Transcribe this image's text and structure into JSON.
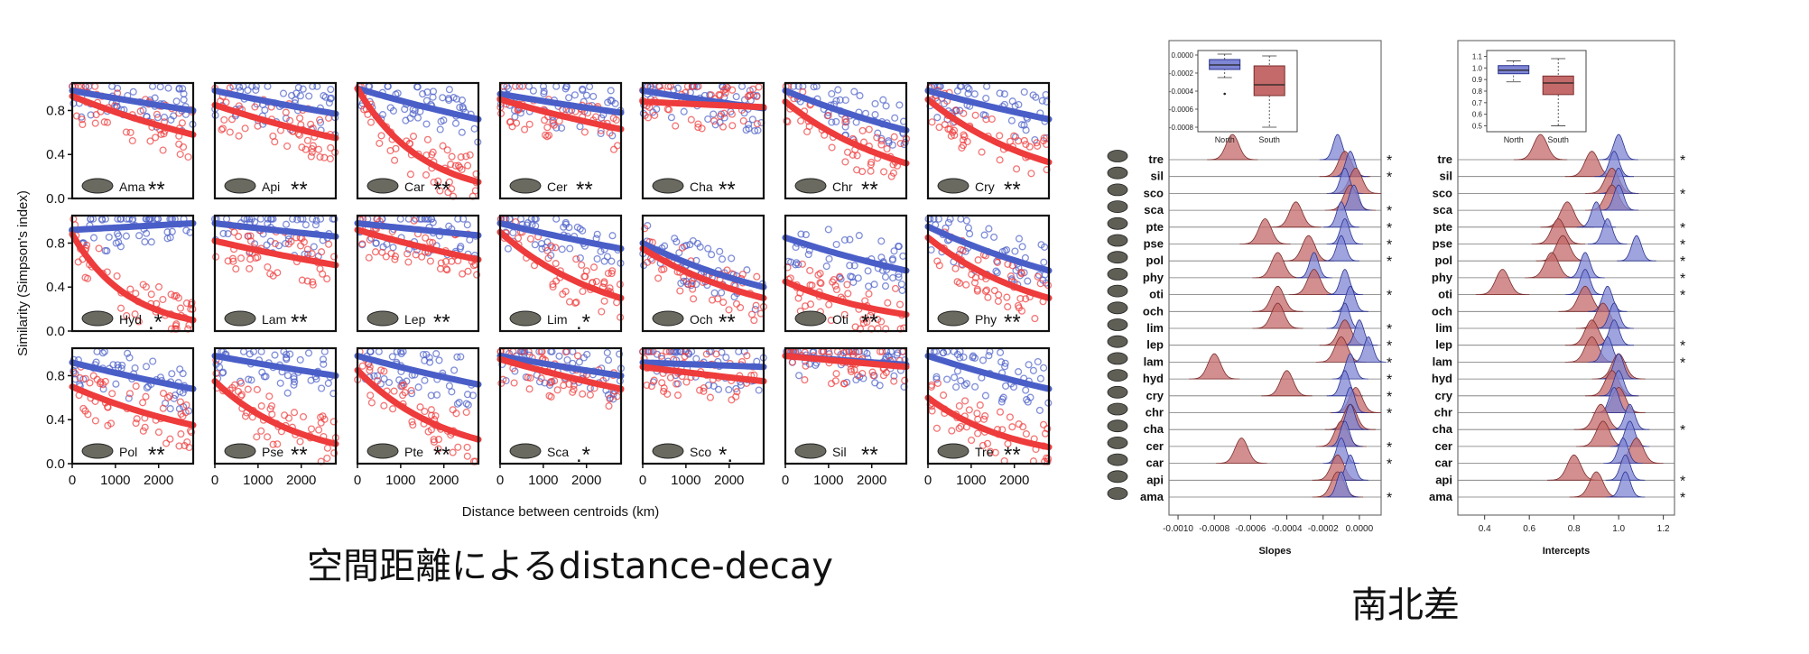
{
  "captions": {
    "left": "空間距離によるdistance-decay",
    "right": "南北差"
  },
  "colors": {
    "north": "#4a5ec8",
    "south": "#ee3b3b",
    "north_fill": "#7f86d4",
    "south_fill": "#c46a6a",
    "frame": "#111111"
  },
  "chart_data": [
    {
      "type": "scatter",
      "ylabel": "Similarity (Simpson's index)",
      "xlabel": "Distance between centroids (km)",
      "x_ticks": [
        "0",
        "1000",
        "2000"
      ],
      "y_ticks": [
        "0.0",
        "0.4",
        "0.8"
      ],
      "xlim": [
        0,
        2800
      ],
      "ylim": [
        0,
        1.05
      ],
      "panels": [
        {
          "label": "Ama",
          "sig": "**",
          "north": [
            0.98,
            0.8
          ],
          "south": [
            0.93,
            0.58
          ]
        },
        {
          "label": "Api",
          "sig": "**",
          "north": [
            0.98,
            0.77
          ],
          "south": [
            0.85,
            0.55
          ]
        },
        {
          "label": "Car",
          "sig": "**",
          "north": [
            1.0,
            0.72
          ],
          "south": [
            1.0,
            0.15
          ]
        },
        {
          "label": "Cer",
          "sig": "**",
          "north": [
            0.95,
            0.78
          ],
          "south": [
            0.9,
            0.63
          ]
        },
        {
          "label": "Cha",
          "sig": "**",
          "north": [
            0.98,
            0.82
          ],
          "south": [
            0.88,
            0.83
          ]
        },
        {
          "label": "Chr",
          "sig": "**",
          "north": [
            0.98,
            0.62
          ],
          "south": [
            0.88,
            0.32
          ]
        },
        {
          "label": "Cry",
          "sig": "**",
          "north": [
            0.98,
            0.72
          ],
          "south": [
            0.9,
            0.33
          ]
        },
        {
          "label": "Hyd",
          "sig": ".*",
          "north": [
            0.92,
            0.98
          ],
          "south": [
            0.88,
            0.1
          ]
        },
        {
          "label": "Lam",
          "sig": "**",
          "north": [
            0.98,
            0.86
          ],
          "south": [
            0.82,
            0.6
          ]
        },
        {
          "label": "Lep",
          "sig": "**",
          "north": [
            0.98,
            0.87
          ],
          "south": [
            0.92,
            0.65
          ]
        },
        {
          "label": "Lim",
          "sig": ".*",
          "north": [
            0.98,
            0.75
          ],
          "south": [
            0.9,
            0.3
          ]
        },
        {
          "label": "Och",
          "sig": "**",
          "north": [
            0.8,
            0.4
          ],
          "south": [
            0.75,
            0.3
          ]
        },
        {
          "label": "Oti",
          "sig": "**",
          "north": [
            0.85,
            0.55
          ],
          "south": [
            0.45,
            0.15
          ]
        },
        {
          "label": "Phy",
          "sig": "**",
          "north": [
            0.95,
            0.55
          ],
          "south": [
            0.85,
            0.3
          ]
        },
        {
          "label": "Pol",
          "sig": "**",
          "north": [
            0.92,
            0.68
          ],
          "south": [
            0.7,
            0.35
          ]
        },
        {
          "label": "Pse",
          "sig": "**",
          "north": [
            0.98,
            0.8
          ],
          "south": [
            0.75,
            0.18
          ]
        },
        {
          "label": "Pte",
          "sig": "**",
          "north": [
            0.98,
            0.72
          ],
          "south": [
            0.85,
            0.22
          ]
        },
        {
          "label": "Sca",
          "sig": ".*",
          "north": [
            0.98,
            0.8
          ],
          "south": [
            0.95,
            0.68
          ]
        },
        {
          "label": "Sco",
          "sig": "*.",
          "north": [
            0.92,
            0.88
          ],
          "south": [
            0.88,
            0.75
          ]
        },
        {
          "label": "Sil",
          "sig": "**",
          "north": [
            0.98,
            0.9
          ],
          "south": [
            0.98,
            0.88
          ]
        },
        {
          "label": "Tre",
          "sig": "**",
          "north": [
            0.98,
            0.68
          ],
          "south": [
            0.6,
            0.15
          ]
        }
      ]
    },
    {
      "type": "area",
      "xlabel": "Slopes",
      "x_ticks": [
        "-0.0010",
        "-0.0008",
        "-0.0006",
        "-0.0004",
        "-0.0002",
        "0.0000"
      ],
      "xlim": [
        -0.00105,
        0.00012
      ],
      "species": [
        "tre",
        "sil",
        "sco",
        "sca",
        "pte",
        "pse",
        "pol",
        "phy",
        "oti",
        "och",
        "lim",
        "lep",
        "lam",
        "hyd",
        "cry",
        "chr",
        "cha",
        "cer",
        "car",
        "api",
        "ama"
      ],
      "significant": [
        "*",
        "*",
        "",
        "*",
        "*",
        "*",
        "*",
        "",
        "*",
        "",
        "*",
        "*",
        "*",
        "*",
        "*",
        "*",
        "",
        "*",
        "*",
        "",
        "*"
      ],
      "north_means": [
        -0.00012,
        -5e-05,
        -8e-05,
        -3e-05,
        -0.0001,
        -8e-05,
        -0.0001,
        -0.00025,
        -8e-05,
        -5e-05,
        -8e-05,
        0.0,
        5e-05,
        -5e-05,
        -8e-05,
        -5e-05,
        -5e-05,
        -8e-05,
        -0.0001,
        -5e-05,
        -0.0001
      ],
      "south_means": [
        -0.0007,
        -8e-05,
        -2e-05,
        -5e-05,
        -0.00035,
        -0.00052,
        -0.00028,
        -0.00045,
        -0.00025,
        -0.00045,
        -0.00045,
        -8e-05,
        -0.0001,
        -0.0008,
        -0.0004,
        -2e-05,
        -5e-05,
        -0.0001,
        -0.00065,
        -0.00012,
        -0.00012
      ],
      "inset": {
        "type": "box",
        "categories": [
          "North",
          "South"
        ],
        "y_ticks": [
          "0.0000",
          "-0.0002",
          "-0.0004",
          "-0.0006",
          "-0.0008"
        ],
        "ylim": [
          -0.00085,
          5e-05
        ],
        "boxes": [
          {
            "name": "North",
            "min": -0.00025,
            "q1": -0.00016,
            "median": -0.00011,
            "q3": -5e-05,
            "max": 1e-05,
            "outliers": [
              -0.00043
            ]
          },
          {
            "name": "South",
            "min": -0.0008,
            "q1": -0.00045,
            "median": -0.00033,
            "q3": -0.00012,
            "max": -1e-05,
            "outliers": []
          }
        ]
      }
    },
    {
      "type": "area",
      "xlabel": "Intercepts",
      "x_ticks": [
        "0.4",
        "0.6",
        "0.8",
        "1.0",
        "1.2"
      ],
      "xlim": [
        0.28,
        1.25
      ],
      "species": [
        "tre",
        "sil",
        "sco",
        "sca",
        "pte",
        "pse",
        "pol",
        "phy",
        "oti",
        "och",
        "lim",
        "lep",
        "lam",
        "hyd",
        "cry",
        "chr",
        "cha",
        "cer",
        "car",
        "api",
        "ama"
      ],
      "significant": [
        "*",
        "",
        "*",
        "",
        "*",
        "*",
        "*",
        "*",
        "*",
        "",
        "",
        "*",
        "*",
        "",
        "",
        "",
        "*",
        "",
        "",
        "*",
        "*"
      ],
      "north_means": [
        1.0,
        0.98,
        1.0,
        1.0,
        0.9,
        0.95,
        1.08,
        0.85,
        0.85,
        0.95,
        0.98,
        0.98,
        0.95,
        1.0,
        1.0,
        0.98,
        1.05,
        1.05,
        1.02,
        1.03,
        1.03
      ],
      "south_means": [
        0.65,
        0.88,
        0.97,
        0.97,
        0.77,
        0.73,
        0.75,
        0.7,
        0.48,
        0.85,
        0.93,
        0.88,
        0.88,
        1.0,
        0.97,
        1.0,
        0.92,
        0.93,
        1.08,
        0.8,
        0.9
      ],
      "inset": {
        "type": "box",
        "categories": [
          "North",
          "South"
        ],
        "y_ticks": [
          "1.1",
          "1.0",
          "0.9",
          "0.8",
          "0.7",
          "0.6",
          "0.5"
        ],
        "ylim": [
          0.45,
          1.15
        ],
        "boxes": [
          {
            "name": "North",
            "min": 0.88,
            "q1": 0.95,
            "median": 0.98,
            "q3": 1.02,
            "max": 1.06,
            "outliers": []
          },
          {
            "name": "South",
            "min": 0.5,
            "q1": 0.77,
            "median": 0.87,
            "q3": 0.93,
            "max": 1.08,
            "outliers": []
          }
        ]
      }
    }
  ]
}
